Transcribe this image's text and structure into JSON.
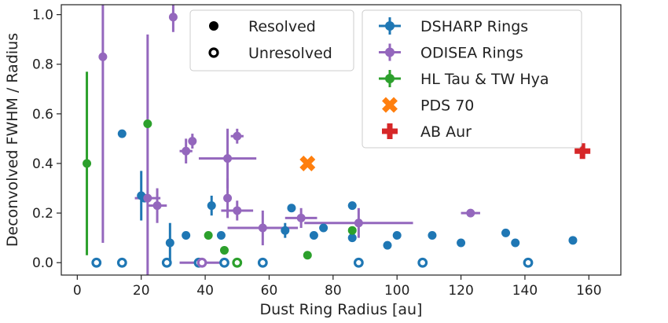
{
  "chart_data": {
    "type": "scatter",
    "xlabel": "Dust Ring Radius [au]",
    "ylabel": "Deconvolved FWHM / Radius",
    "xlim": [
      -5,
      170
    ],
    "ylim": [
      -0.05,
      1.04
    ],
    "xticks": [
      0,
      20,
      40,
      60,
      80,
      100,
      120,
      140,
      160
    ],
    "yticks": [
      0.0,
      0.2,
      0.4,
      0.6,
      0.8,
      1.0
    ],
    "grid": false,
    "legend_marker": {
      "position": "top-center",
      "entries": [
        {
          "label": "Resolved",
          "style": "filled"
        },
        {
          "label": "Unresolved",
          "style": "open"
        }
      ]
    },
    "legend_series": {
      "position": "top-right"
    },
    "series": [
      {
        "name": "DSHARP Rings",
        "color": "#1f77b4",
        "marker": "circle",
        "resolved": [
          {
            "x": 14,
            "y": 0.52
          },
          {
            "x": 20,
            "y": 0.27,
            "yerr": 0.1
          },
          {
            "x": 21,
            "y": 0.26
          },
          {
            "x": 29,
            "y": 0.08,
            "yerr": 0.08
          },
          {
            "x": 34,
            "y": 0.11
          },
          {
            "x": 42,
            "y": 0.23,
            "yerr": 0.04
          },
          {
            "x": 45,
            "y": 0.11
          },
          {
            "x": 65,
            "y": 0.13,
            "yerr": 0.03
          },
          {
            "x": 67,
            "y": 0.22
          },
          {
            "x": 74,
            "y": 0.11
          },
          {
            "x": 77,
            "y": 0.14
          },
          {
            "x": 86,
            "y": 0.23
          },
          {
            "x": 86,
            "y": 0.1
          },
          {
            "x": 97,
            "y": 0.07
          },
          {
            "x": 100,
            "y": 0.11
          },
          {
            "x": 111,
            "y": 0.11
          },
          {
            "x": 120,
            "y": 0.08
          },
          {
            "x": 134,
            "y": 0.12
          },
          {
            "x": 137,
            "y": 0.08
          },
          {
            "x": 155,
            "y": 0.09
          }
        ],
        "unresolved": [
          {
            "x": 6,
            "y": 0
          },
          {
            "x": 14,
            "y": 0
          },
          {
            "x": 28,
            "y": 0
          },
          {
            "x": 38,
            "y": 0
          },
          {
            "x": 46,
            "y": 0
          },
          {
            "x": 58,
            "y": 0
          },
          {
            "x": 88,
            "y": 0
          },
          {
            "x": 108,
            "y": 0
          },
          {
            "x": 141,
            "y": 0
          }
        ]
      },
      {
        "name": "ODISEA Rings",
        "color": "#9467bd",
        "marker": "circle",
        "resolved": [
          {
            "x": 8,
            "y": 0.83,
            "yerr": [
              0.75,
              0.92
            ]
          },
          {
            "x": 22,
            "y": 0.26,
            "xerr": 4,
            "yerr": [
              0.4,
              0.66
            ]
          },
          {
            "x": 25,
            "y": 0.23,
            "xerr": 3,
            "yerr": 0.07
          },
          {
            "x": 30,
            "y": 0.99,
            "yerr": [
              0.06,
              1.2
            ]
          },
          {
            "x": 34,
            "y": 0.45,
            "xerr": 2,
            "yerr": 0.05
          },
          {
            "x": 36,
            "y": 0.49,
            "yerr": 0.03
          },
          {
            "x": 47,
            "y": 0.42,
            "xerr": 9,
            "yerr": 0.12
          },
          {
            "x": 47,
            "y": 0.26,
            "yerr": 0.08
          },
          {
            "x": 50,
            "y": 0.51,
            "xerr": 2,
            "yerr": 0.03
          },
          {
            "x": 50,
            "y": 0.21,
            "xerr": 5,
            "yerr": 0.04
          },
          {
            "x": 58,
            "y": 0.14,
            "xerr": 11,
            "yerr": 0.07
          },
          {
            "x": 70,
            "y": 0.18,
            "xerr": 5,
            "yerr": 0.04
          },
          {
            "x": 88,
            "y": 0.16,
            "xerr": 17,
            "yerr": 0.06
          },
          {
            "x": 123,
            "y": 0.2,
            "xerr": 3
          }
        ],
        "unresolved": [
          {
            "x": 39,
            "y": 0,
            "xerr": 7
          }
        ]
      },
      {
        "name": "HL Tau & TW Hya",
        "color": "#2ca02c",
        "marker": "circle",
        "resolved": [
          {
            "x": 3,
            "y": 0.4,
            "yerr": [
              0.37,
              0.37
            ]
          },
          {
            "x": 22,
            "y": 0.56
          },
          {
            "x": 41,
            "y": 0.11
          },
          {
            "x": 46,
            "y": 0.05
          },
          {
            "x": 72,
            "y": 0.03
          },
          {
            "x": 86,
            "y": 0.13
          }
        ],
        "unresolved": [
          {
            "x": 50,
            "y": 0
          }
        ]
      },
      {
        "name": "PDS 70",
        "color": "#ff7f0e",
        "marker": "x",
        "resolved": [
          {
            "x": 72,
            "y": 0.4
          }
        ],
        "unresolved": []
      },
      {
        "name": "AB Aur",
        "color": "#d62728",
        "marker": "plus",
        "resolved": [
          {
            "x": 158,
            "y": 0.45
          }
        ],
        "unresolved": []
      }
    ]
  }
}
